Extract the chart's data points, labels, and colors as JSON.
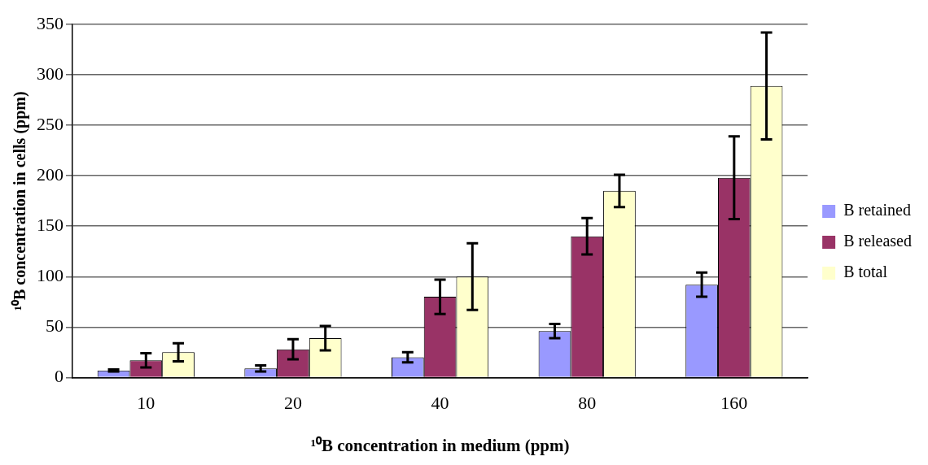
{
  "chart_data": {
    "type": "bar",
    "xlabel": "¹⁰B concentration in medium (ppm)",
    "ylabel": "¹⁰B concentration in cells (ppm)",
    "categories": [
      "10",
      "20",
      "40",
      "80",
      "160"
    ],
    "series": [
      {
        "name": "B retained",
        "color": "#9999ff",
        "values": [
          7,
          9,
          20,
          46,
          92
        ],
        "errors": [
          1,
          3,
          5,
          7,
          12
        ]
      },
      {
        "name": "B released",
        "color": "#993366",
        "values": [
          17,
          28,
          80,
          140,
          198
        ],
        "errors": [
          7,
          10,
          17,
          18,
          41
        ]
      },
      {
        "name": "B total",
        "color": "#ffffcc",
        "values": [
          25,
          39,
          100,
          185,
          289
        ],
        "errors": [
          9,
          12,
          33,
          16,
          53
        ]
      }
    ],
    "ylim": [
      0,
      350
    ],
    "yticks": [
      0,
      50,
      100,
      150,
      200,
      250,
      300,
      350
    ],
    "grid": "y",
    "legend": "right"
  }
}
